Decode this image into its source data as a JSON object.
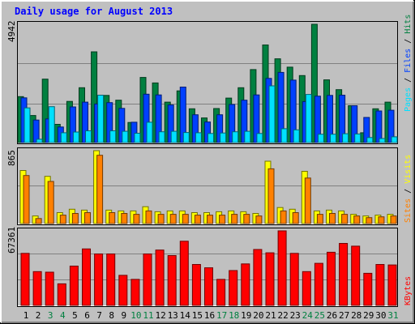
{
  "title": "Daily usage for August 2013",
  "colors": {
    "background": "#C0C0C0",
    "title": "#0000FF",
    "hits": "#008040",
    "files": "#0040FF",
    "pages": "#00E0FF",
    "visits": "#FFFF00",
    "sites": "#FF8000",
    "kbytes": "#FF0000",
    "weekend_label": "#008040",
    "weekday_label": "#000000"
  },
  "legend": {
    "pages": "Pages",
    "files": "Files",
    "hits": "Hits",
    "sites": "Sites",
    "visits": "Visits",
    "kbytes": "KBytes",
    "separator": " / "
  },
  "chart_data": {
    "type": "bar",
    "title": "Daily usage for August 2013",
    "categories": [
      "1",
      "2",
      "3",
      "4",
      "5",
      "6",
      "7",
      "8",
      "9",
      "10",
      "11",
      "12",
      "13",
      "14",
      "15",
      "16",
      "17",
      "18",
      "19",
      "20",
      "21",
      "22",
      "23",
      "24",
      "25",
      "26",
      "27",
      "28",
      "29",
      "30",
      "31"
    ],
    "weekend_days": [
      "3",
      "4",
      "10",
      "11",
      "17",
      "18",
      "24",
      "25",
      "31"
    ],
    "panels": [
      {
        "id": "hits_files_pages",
        "max_label": "4942",
        "ymax": 4942,
        "series": [
          {
            "name": "Hits",
            "values": [
              1920,
              1130,
              2650,
              760,
              1720,
              2290,
              3790,
              1970,
              1770,
              840,
              2720,
              2490,
              1690,
              2160,
              1410,
              1030,
              1420,
              1860,
              2290,
              3050,
              4080,
              3500,
              3150,
              2800,
              4942,
              2620,
              2210,
              1540,
              410,
              1410,
              1690
            ]
          },
          {
            "name": "Files",
            "values": [
              1870,
              940,
              990,
              650,
              1490,
              1690,
              1610,
              1670,
              1430,
              850,
              2020,
              1990,
              1570,
              2320,
              1160,
              860,
              1160,
              1590,
              1770,
              1990,
              2680,
              2930,
              2610,
              1710,
              1940,
              1970,
              1980,
              1540,
              1050,
              1320,
              1350
            ]
          },
          {
            "name": "Pages",
            "values": [
              1450,
              140,
              1500,
              410,
              440,
              490,
              1980,
              490,
              470,
              390,
              850,
              450,
              470,
              420,
              410,
              380,
              400,
              450,
              470,
              380,
              2370,
              580,
              530,
              2010,
              350,
              350,
              370,
              360,
              210,
              170,
              240
            ]
          }
        ]
      },
      {
        "id": "visits_sites",
        "max_label": "865",
        "ymax": 865,
        "series": [
          {
            "name": "Visits",
            "values": [
              630,
              90,
              560,
              130,
              170,
              160,
              865,
              160,
              150,
              150,
              200,
              140,
              150,
              150,
              130,
              130,
              140,
              150,
              140,
              120,
              740,
              190,
              170,
              620,
              150,
              160,
              150,
              110,
              90,
              100,
              110
            ]
          },
          {
            "name": "Sites",
            "values": [
              570,
              60,
              500,
              100,
              120,
              130,
              810,
              130,
              120,
              110,
              150,
              110,
              110,
              110,
              100,
              100,
              100,
              110,
              110,
              90,
              650,
              150,
              130,
              540,
              110,
              120,
              110,
              90,
              70,
              80,
              90
            ]
          }
        ]
      },
      {
        "id": "kbytes",
        "max_label": "67361",
        "ymax": 67361,
        "series": [
          {
            "name": "KBytes",
            "values": [
              47000,
              30500,
              30000,
              19500,
              35500,
              51000,
              46500,
              46500,
              27200,
              23500,
              46500,
              50000,
              45000,
              58000,
              37000,
              34000,
              23500,
              31500,
              37500,
              50500,
              47500,
              67361,
              47000,
              30500,
              38000,
              48000,
              56000,
              53500,
              29000,
              37000,
              36500
            ]
          }
        ]
      }
    ]
  }
}
